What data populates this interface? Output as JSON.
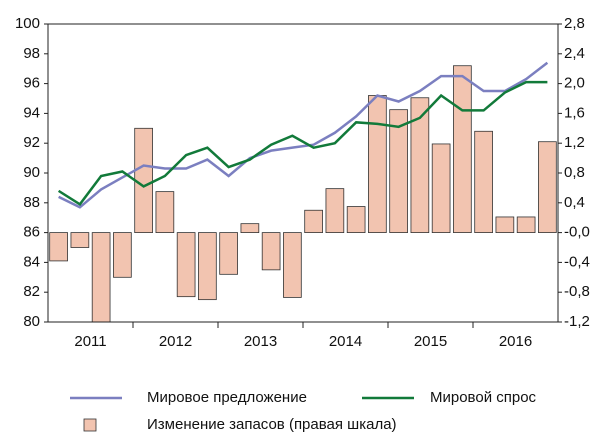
{
  "chart_data": {
    "type": "bar-line",
    "categories": [
      null,
      null,
      null,
      null,
      null,
      null,
      null,
      null,
      null,
      null,
      null,
      null,
      null,
      null,
      null,
      null,
      null,
      null,
      null,
      null,
      null,
      null,
      null,
      null
    ],
    "year_labels": [
      "2011",
      "2012",
      "2013",
      "2014",
      "2015",
      "2016"
    ],
    "series": [
      {
        "name": "Мировое предложение",
        "type": "line",
        "color": "#7b7fc0",
        "axis": "y",
        "values": [
          88.4,
          87.7,
          88.9,
          89.7,
          90.5,
          90.3,
          90.3,
          90.9,
          89.8,
          91.0,
          91.5,
          91.7,
          91.9,
          92.7,
          93.8,
          95.2,
          94.8,
          95.5,
          96.5,
          96.5,
          95.5,
          95.5,
          96.3,
          97.4
        ]
      },
      {
        "name": "Мировой спрос",
        "type": "line",
        "color": "#127a3a",
        "axis": "y",
        "values": [
          88.8,
          87.9,
          89.8,
          90.1,
          89.1,
          89.8,
          91.2,
          91.7,
          90.4,
          90.9,
          91.9,
          92.5,
          91.7,
          92.0,
          93.4,
          93.3,
          93.1,
          93.7,
          95.2,
          94.2,
          94.2,
          95.4,
          96.1,
          96.1
        ]
      },
      {
        "name": "Изменение запасов (правая шкала)",
        "type": "bar",
        "color": "#f2c4b0",
        "axis": "y2",
        "values": [
          -0.38,
          -0.2,
          -1.2,
          -0.6,
          1.4,
          0.55,
          -0.86,
          -0.9,
          -0.56,
          0.12,
          -0.5,
          -0.87,
          0.3,
          0.59,
          0.35,
          1.84,
          1.65,
          1.81,
          1.19,
          2.24,
          1.36,
          0.21,
          0.21,
          1.22
        ]
      }
    ],
    "ylim": [
      80,
      100
    ],
    "yticks": [
      80,
      82,
      84,
      86,
      88,
      90,
      92,
      94,
      96,
      98,
      100
    ],
    "y2lim": [
      -1.2,
      2.8
    ],
    "y2ticks": [
      {
        "value": -1.2,
        "label": "-1,2"
      },
      {
        "value": -0.8,
        "label": "-0,8"
      },
      {
        "value": -0.4,
        "label": "-0,4"
      },
      {
        "value": 0,
        "label": "-0,0"
      },
      {
        "value": 0.4,
        "label": "0,4"
      },
      {
        "value": 0.8,
        "label": "0,8"
      },
      {
        "value": 1.2,
        "label": "1,2"
      },
      {
        "value": 1.6,
        "label": "1,6"
      },
      {
        "value": 2.0,
        "label": "2,0"
      },
      {
        "value": 2.4,
        "label": "2,4"
      },
      {
        "value": 2.8,
        "label": "2,8"
      }
    ]
  }
}
